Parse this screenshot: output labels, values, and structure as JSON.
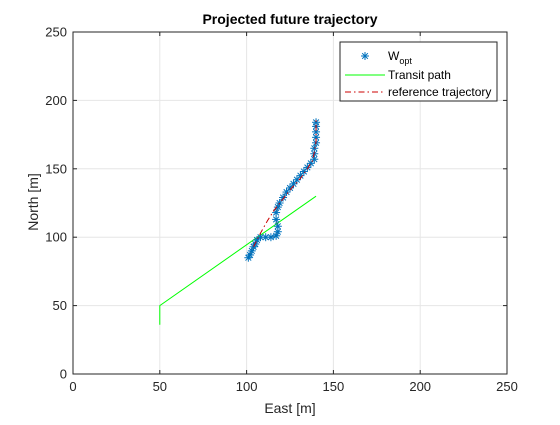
{
  "colors": {
    "background": "#ffffff",
    "axes_frame": "#262626",
    "grid": "#e6e6e6",
    "wopt_marker": "#0072bd",
    "transit_path": "#00ff00",
    "reference_trajectory": "#cc0000"
  },
  "chart_data": {
    "type": "line",
    "title": "Projected future trajectory",
    "xlabel": "East [m]",
    "ylabel": "North [m]",
    "xlim": [
      0,
      250
    ],
    "ylim": [
      0,
      250
    ],
    "xticks": [
      0,
      50,
      100,
      150,
      200,
      250
    ],
    "yticks": [
      0,
      50,
      100,
      150,
      200,
      250
    ],
    "grid": true,
    "legend_position": "top-right",
    "legend": [
      {
        "label": "W",
        "subscript": "opt",
        "style": "marker-asterisk"
      },
      {
        "label": "Transit path",
        "style": "solid-line"
      },
      {
        "label": "reference trajectory",
        "style": "dash-dot-line"
      }
    ],
    "series": [
      {
        "name": "Wopt",
        "style": "markers",
        "x": [
          101,
          102,
          103,
          104,
          105,
          106,
          108,
          111,
          114,
          117,
          118,
          118,
          117,
          117,
          118,
          119,
          121,
          123,
          125,
          127,
          129,
          131,
          133,
          135,
          137,
          139,
          139,
          139,
          140,
          140,
          140,
          140,
          140
        ],
        "y": [
          85,
          87,
          90,
          93,
          95,
          98,
          100,
          100,
          100,
          101,
          104,
          108,
          113,
          118,
          122,
          125,
          129,
          133,
          136,
          139,
          142,
          145,
          148,
          151,
          154,
          157,
          161,
          165,
          169,
          173,
          177,
          181,
          184
        ]
      },
      {
        "name": "Transit path",
        "style": "solid",
        "x": [
          50,
          50,
          140
        ],
        "y": [
          36,
          50,
          130
        ]
      },
      {
        "name": "reference trajectory",
        "style": "dashdot",
        "x": [
          104,
          108,
          112,
          116,
          121,
          126,
          131,
          135,
          138,
          139,
          140,
          140,
          140
        ],
        "y": [
          93,
          103,
          112,
          120,
          128,
          136,
          143,
          150,
          156,
          162,
          170,
          178,
          186
        ]
      }
    ]
  }
}
